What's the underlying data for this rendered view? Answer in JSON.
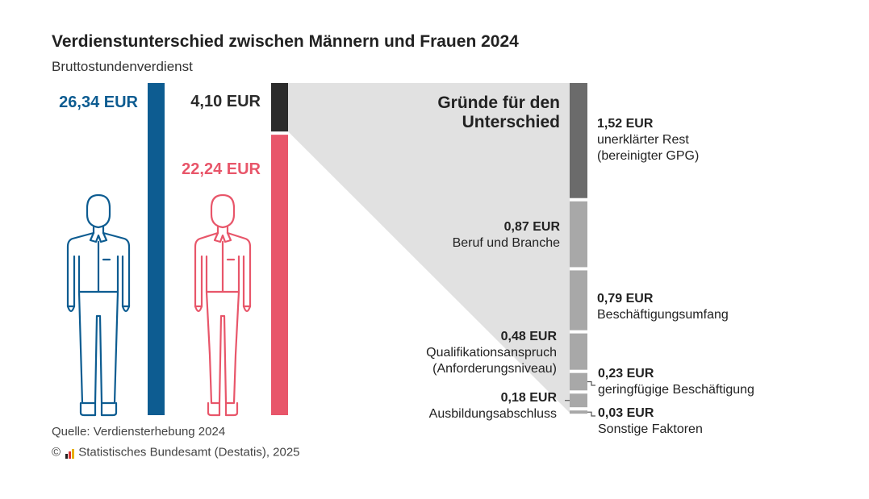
{
  "title": "Verdienstunterschied zwischen Männern und Frauen 2024",
  "subtitle": "Bruttostundenverdienst",
  "source": "Quelle: Verdiensterhebung 2024",
  "copyright_symbol": "©",
  "copyright_text": "Statistisches Bundesamt (Destatis), 2025",
  "colors": {
    "men": "#0d5c91",
    "women": "#e8566a",
    "gap": "#2b2b2b",
    "unexplained": "#6b6b6b",
    "explained": "#a8a8a8",
    "funnel": "#e1e1e1",
    "text": "#222222"
  },
  "chart_data": {
    "type": "bar",
    "title": "Verdienstunterschied zwischen Männern und Frauen 2024",
    "subtitle": "Bruttostundenverdienst",
    "unit": "EUR",
    "comparison": {
      "men": {
        "value": 26.34,
        "label": "26,34 EUR"
      },
      "women": {
        "value": 22.24,
        "label": "22,24 EUR"
      },
      "gap": {
        "value": 4.1,
        "label": "4,10 EUR"
      }
    },
    "breakdown_title": "Gründe für den Unterschied",
    "breakdown": [
      {
        "value": 1.52,
        "amount": "1,52 EUR",
        "lines": [
          "unerklärter Rest",
          "(bereinigter GPG)"
        ],
        "category": "unexplained"
      },
      {
        "value": 0.87,
        "amount": "0,87 EUR",
        "lines": [
          "Beruf und Branche"
        ],
        "category": "explained"
      },
      {
        "value": 0.79,
        "amount": "0,79 EUR",
        "lines": [
          "Beschäftigungsumfang"
        ],
        "category": "explained"
      },
      {
        "value": 0.48,
        "amount": "0,48 EUR",
        "lines": [
          "Qualifikationsanspruch",
          "(Anforderungsniveau)"
        ],
        "category": "explained"
      },
      {
        "value": 0.23,
        "amount": "0,23 EUR",
        "lines": [
          "geringfügige Beschäftigung"
        ],
        "category": "explained"
      },
      {
        "value": 0.18,
        "amount": "0,18 EUR",
        "lines": [
          "Ausbildungsabschluss"
        ],
        "category": "explained"
      },
      {
        "value": 0.03,
        "amount": "0,03 EUR",
        "lines": [
          "Sonstige Faktoren"
        ],
        "category": "explained"
      }
    ]
  }
}
